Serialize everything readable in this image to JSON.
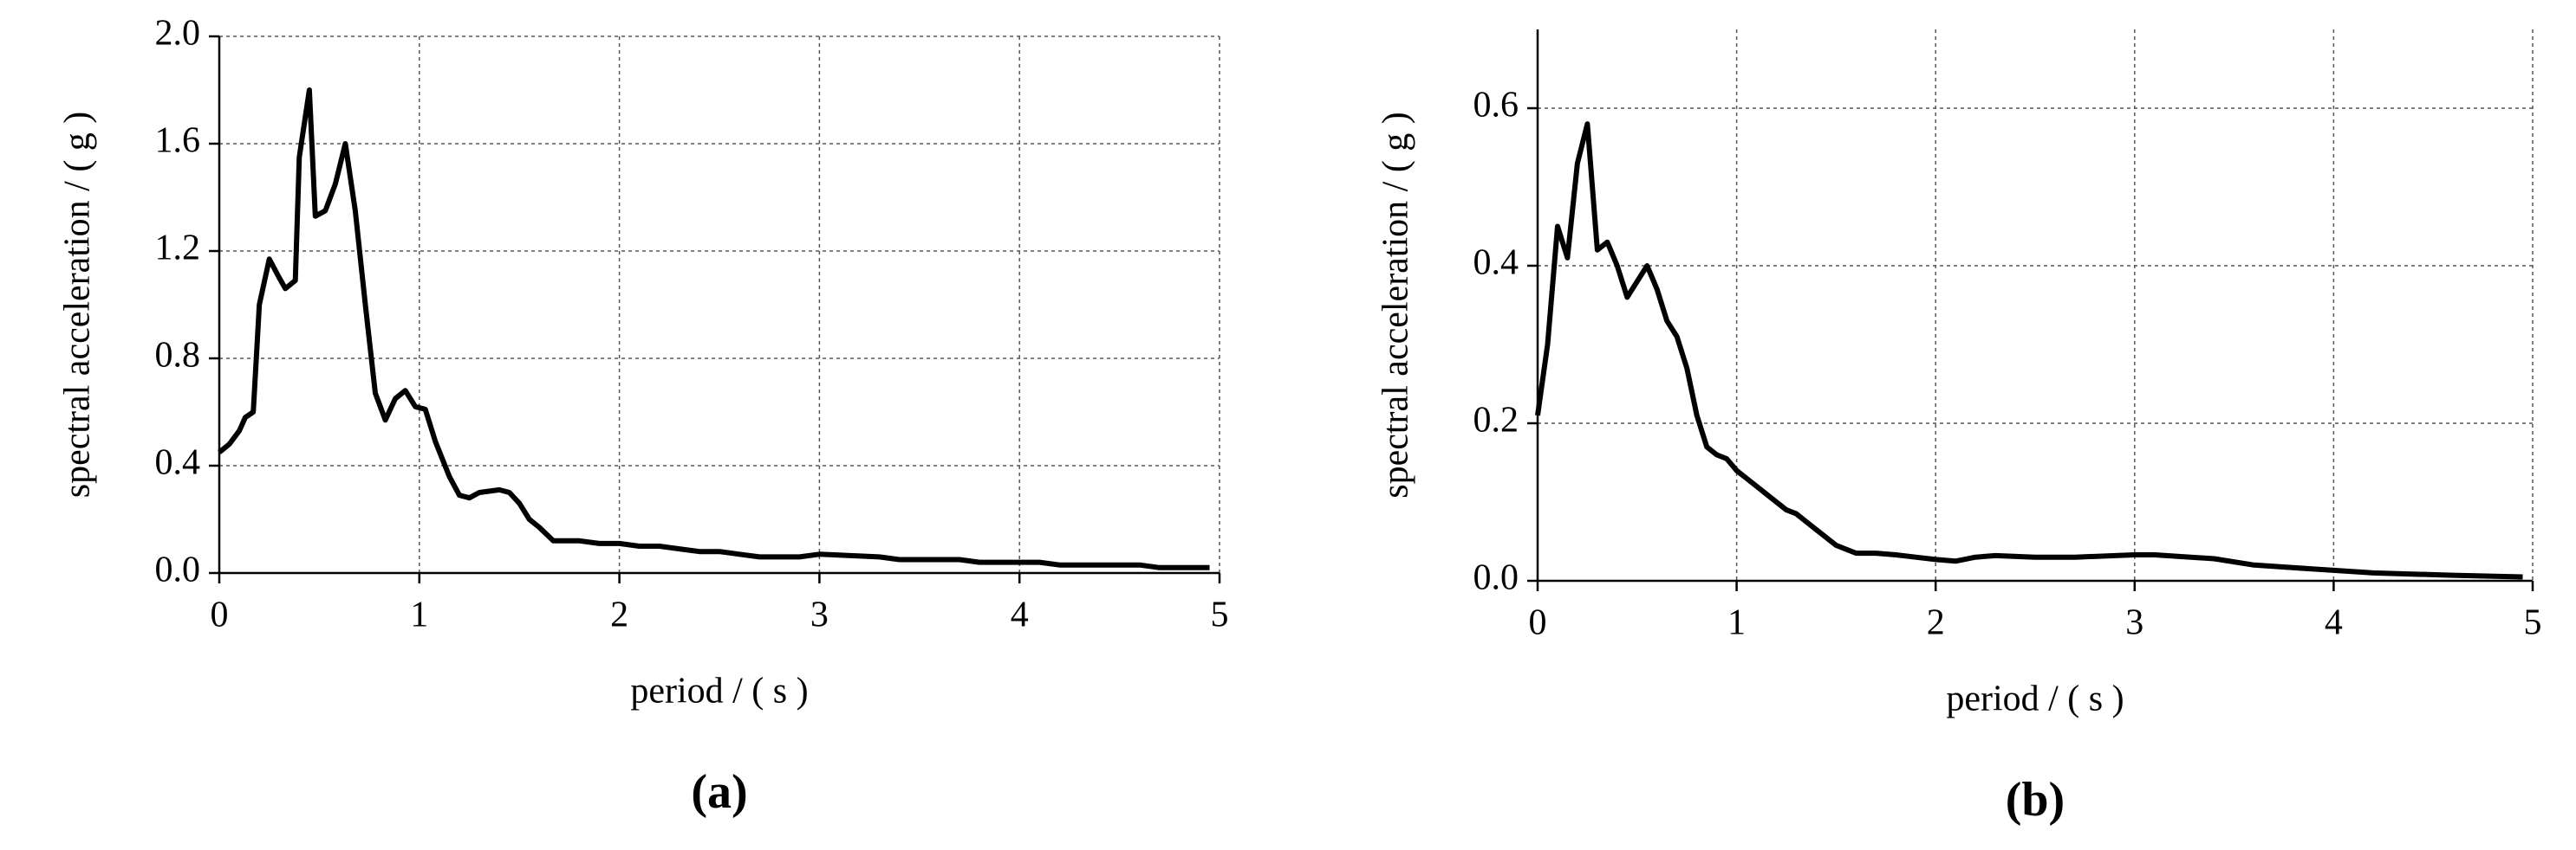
{
  "chart_data": [
    {
      "type": "line",
      "panel_label": "(a)",
      "x_label": "period  / ( s )",
      "y_label": "spectral acceleration  / ( g )",
      "xlim": [
        0,
        5
      ],
      "xticks": [
        0,
        1,
        2,
        3,
        4,
        5
      ],
      "ylim": [
        0,
        2
      ],
      "yticks": [
        {
          "value": 0,
          "label": "0.0"
        },
        0.4,
        0.8,
        1.2,
        1.6,
        {
          "value": 2,
          "label": "2.0"
        }
      ],
      "grid": true,
      "color": "#000000",
      "x": [
        0,
        0.05,
        0.1,
        0.13,
        0.17,
        0.2,
        0.25,
        0.3,
        0.33,
        0.38,
        0.4,
        0.45,
        0.48,
        0.53,
        0.58,
        0.63,
        0.68,
        0.73,
        0.78,
        0.83,
        0.88,
        0.93,
        0.98,
        1.03,
        1.08,
        1.15,
        1.2,
        1.25,
        1.3,
        1.4,
        1.45,
        1.5,
        1.55,
        1.6,
        1.67,
        1.8,
        1.9,
        2.0,
        2.1,
        2.2,
        2.3,
        2.4,
        2.5,
        2.6,
        2.7,
        2.9,
        3.0,
        3.3,
        3.4,
        3.7,
        3.8,
        4.1,
        4.2,
        4.6,
        4.7,
        4.95
      ],
      "values": [
        0.45,
        0.48,
        0.53,
        0.58,
        0.6,
        1.0,
        1.17,
        1.1,
        1.06,
        1.09,
        1.55,
        1.8,
        1.33,
        1.35,
        1.45,
        1.6,
        1.35,
        1.0,
        0.67,
        0.57,
        0.65,
        0.68,
        0.62,
        0.61,
        0.49,
        0.36,
        0.29,
        0.28,
        0.3,
        0.31,
        0.3,
        0.26,
        0.2,
        0.17,
        0.12,
        0.12,
        0.11,
        0.11,
        0.1,
        0.1,
        0.09,
        0.08,
        0.08,
        0.07,
        0.06,
        0.06,
        0.07,
        0.06,
        0.05,
        0.05,
        0.04,
        0.04,
        0.03,
        0.03,
        0.02,
        0.02
      ]
    },
    {
      "type": "line",
      "panel_label": "(b)",
      "x_label": "period / ( s )",
      "y_label": "spectral acceleration / ( g )",
      "xlim": [
        0,
        5
      ],
      "xticks": [
        0,
        1,
        2,
        3,
        4,
        5
      ],
      "ylim": [
        0,
        0.7
      ],
      "yticks": [
        {
          "value": 0,
          "label": "0.0"
        },
        0.2,
        0.4,
        0.6
      ],
      "grid": true,
      "color": "#000000",
      "x": [
        0,
        0.05,
        0.1,
        0.15,
        0.2,
        0.25,
        0.3,
        0.35,
        0.4,
        0.45,
        0.5,
        0.55,
        0.6,
        0.65,
        0.7,
        0.75,
        0.8,
        0.85,
        0.9,
        0.95,
        1.0,
        1.05,
        1.1,
        1.15,
        1.2,
        1.25,
        1.3,
        1.35,
        1.4,
        1.5,
        1.6,
        1.7,
        1.8,
        1.9,
        2.0,
        2.1,
        2.2,
        2.3,
        2.5,
        2.7,
        3.0,
        3.1,
        3.4,
        3.6,
        3.9,
        4.2,
        4.6,
        4.95
      ],
      "values": [
        0.21,
        0.3,
        0.45,
        0.41,
        0.53,
        0.58,
        0.42,
        0.43,
        0.4,
        0.36,
        0.38,
        0.4,
        0.37,
        0.33,
        0.31,
        0.27,
        0.21,
        0.17,
        0.16,
        0.155,
        0.14,
        0.13,
        0.12,
        0.11,
        0.1,
        0.09,
        0.085,
        0.075,
        0.065,
        0.045,
        0.035,
        0.035,
        0.033,
        0.03,
        0.027,
        0.025,
        0.03,
        0.032,
        0.03,
        0.03,
        0.033,
        0.033,
        0.028,
        0.02,
        0.015,
        0.01,
        0.007,
        0.005
      ]
    }
  ]
}
